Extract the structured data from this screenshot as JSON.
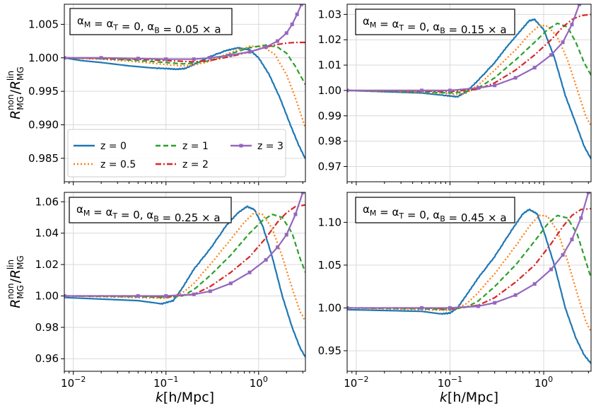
{
  "chart_data": [
    {
      "type": "line",
      "panel_label": "α_M = α_T = 0, α_B = 0.05 × a",
      "xlabel": "k[h/Mpc]",
      "ylabel": "R_MG^non / R_MG^lin",
      "xscale": "log",
      "xlim": [
        0.008,
        3.2
      ],
      "ylim": [
        0.9815,
        1.008
      ],
      "yticks": [
        0.985,
        0.99,
        0.995,
        1.0,
        1.005
      ],
      "ytick_labels": [
        "0.985",
        "0.990",
        "0.995",
        "1.000",
        "1.005"
      ],
      "grid": true,
      "legend": "lower-left",
      "series": [
        {
          "name": "z = 0",
          "color": "#1f77b4",
          "dash": "solid",
          "x": [
            0.008,
            0.012,
            0.02,
            0.04,
            0.07,
            0.1,
            0.13,
            0.16,
            0.2,
            0.3,
            0.45,
            0.6,
            0.8,
            1.0,
            1.3,
            1.7,
            2.2,
            2.7,
            3.2
          ],
          "y": [
            1.0,
            0.9996,
            0.9993,
            0.9988,
            0.9985,
            0.9984,
            0.9983,
            0.9984,
            0.999,
            1.0002,
            1.0011,
            1.0015,
            1.0012,
            1.0,
            0.9975,
            0.994,
            0.99,
            0.987,
            0.9849
          ]
        },
        {
          "name": "z = 0.5",
          "color": "#ff7f0e",
          "dash": "dotted",
          "x": [
            0.008,
            0.02,
            0.05,
            0.1,
            0.15,
            0.2,
            0.3,
            0.5,
            0.8,
            1.1,
            1.5,
            2.0,
            2.5,
            3.2
          ],
          "y": [
            1.0,
            0.9998,
            0.9994,
            0.999,
            0.9988,
            0.9989,
            0.9995,
            1.0008,
            1.0017,
            1.0017,
            1.0005,
            0.9975,
            0.994,
            0.9895
          ]
        },
        {
          "name": "z = 1",
          "color": "#2ca02c",
          "dash": "dashed",
          "x": [
            0.008,
            0.02,
            0.05,
            0.1,
            0.15,
            0.2,
            0.3,
            0.5,
            0.8,
            1.2,
            1.6,
            2.0,
            2.5,
            3.2
          ],
          "y": [
            1.0,
            0.9999,
            0.9996,
            0.9993,
            0.9991,
            0.9992,
            0.9996,
            1.0006,
            1.0015,
            1.0019,
            1.0016,
            1.0007,
            0.9987,
            0.996
          ]
        },
        {
          "name": "z = 2",
          "color": "#d62728",
          "dash": "dashdot",
          "x": [
            0.008,
            0.02,
            0.05,
            0.1,
            0.2,
            0.3,
            0.5,
            0.8,
            1.2,
            1.6,
            2.0,
            2.5,
            3.2
          ],
          "y": [
            1.0,
            0.9999,
            0.9998,
            0.9996,
            0.9994,
            0.9996,
            1.0002,
            1.0009,
            1.0016,
            1.002,
            1.0022,
            1.0023,
            1.0023
          ]
        },
        {
          "name": "z = 3",
          "color": "#9467bd",
          "dash": "solid-square-markers",
          "x": [
            0.008,
            0.02,
            0.05,
            0.1,
            0.2,
            0.3,
            0.5,
            0.8,
            1.2,
            1.6,
            2.0,
            2.3,
            2.6,
            2.9
          ],
          "y": [
            1.0,
            1.0,
            0.9999,
            0.9998,
            0.9998,
            1.0,
            1.0004,
            1.0009,
            1.0016,
            1.0025,
            1.0037,
            1.005,
            1.0065,
            1.008
          ]
        }
      ]
    },
    {
      "type": "line",
      "panel_label": "α_M = α_T = 0, α_B = 0.15 × a",
      "xlabel": "k[h/Mpc]",
      "ylabel": "",
      "xscale": "log",
      "xlim": [
        0.008,
        3.2
      ],
      "ylim": [
        0.964,
        1.034
      ],
      "yticks": [
        0.97,
        0.98,
        0.99,
        1.0,
        1.01,
        1.02,
        1.03
      ],
      "ytick_labels": [
        "0.97",
        "0.98",
        "0.99",
        "1.00",
        "1.01",
        "1.02",
        "1.03"
      ],
      "grid": true,
      "series": [
        {
          "name": "z = 0",
          "color": "#1f77b4",
          "dash": "solid",
          "x": [
            0.008,
            0.02,
            0.05,
            0.09,
            0.12,
            0.15,
            0.2,
            0.3,
            0.4,
            0.55,
            0.7,
            0.8,
            1.0,
            1.3,
            1.7,
            2.2,
            2.7,
            3.2
          ],
          "y": [
            1.0,
            0.9995,
            0.999,
            0.998,
            0.9975,
            0.9995,
            1.004,
            1.011,
            1.017,
            1.023,
            1.0275,
            1.028,
            1.024,
            1.013,
            0.998,
            0.987,
            0.978,
            0.973
          ]
        },
        {
          "name": "z = 0.5",
          "color": "#ff7f0e",
          "dash": "dotted",
          "x": [
            0.008,
            0.03,
            0.08,
            0.12,
            0.15,
            0.2,
            0.3,
            0.5,
            0.7,
            0.9,
            1.1,
            1.4,
            1.8,
            2.3,
            2.8,
            3.2
          ],
          "y": [
            1.0,
            0.9995,
            0.999,
            0.9985,
            0.999,
            1.002,
            1.008,
            1.016,
            1.022,
            1.0255,
            1.0255,
            1.021,
            1.012,
            1.0,
            0.99,
            0.986
          ]
        },
        {
          "name": "z = 1",
          "color": "#2ca02c",
          "dash": "dashed",
          "x": [
            0.008,
            0.05,
            0.1,
            0.15,
            0.2,
            0.3,
            0.5,
            0.8,
            1.1,
            1.4,
            1.8,
            2.2,
            2.7,
            3.2
          ],
          "y": [
            1.0,
            0.9995,
            0.999,
            0.9995,
            1.001,
            1.005,
            1.012,
            1.019,
            1.024,
            1.0265,
            1.025,
            1.019,
            1.011,
            1.006
          ]
        },
        {
          "name": "z = 2",
          "color": "#d62728",
          "dash": "dashdot",
          "x": [
            0.008,
            0.05,
            0.1,
            0.2,
            0.3,
            0.5,
            0.8,
            1.2,
            1.6,
            2.0,
            2.5,
            3.2
          ],
          "y": [
            1.0,
            0.9998,
            0.9996,
            1.0005,
            1.003,
            1.008,
            1.014,
            1.02,
            1.025,
            1.028,
            1.0295,
            1.03
          ]
        },
        {
          "name": "z = 3",
          "color": "#9467bd",
          "dash": "solid-square-markers",
          "x": [
            0.008,
            0.05,
            0.1,
            0.2,
            0.3,
            0.5,
            0.8,
            1.2,
            1.6,
            2.0,
            2.4
          ],
          "y": [
            1.0,
            1.0,
            1.0,
            1.001,
            1.002,
            1.005,
            1.009,
            1.014,
            1.019,
            1.026,
            1.034
          ]
        }
      ]
    },
    {
      "type": "line",
      "panel_label": "α_M = α_T = 0, α_B = 0.25 × a",
      "xlabel": "k[h/Mpc]",
      "ylabel": "R_MG^non / R_MG^lin",
      "xscale": "log",
      "xlim": [
        0.008,
        3.2
      ],
      "ylim": [
        0.952,
        1.066
      ],
      "yticks": [
        0.96,
        0.98,
        1.0,
        1.02,
        1.04,
        1.06
      ],
      "ytick_labels": [
        "0.96",
        "0.98",
        "1.00",
        "1.02",
        "1.04",
        "1.06"
      ],
      "grid": true,
      "series": [
        {
          "name": "z = 0",
          "color": "#1f77b4",
          "dash": "solid",
          "x": [
            0.008,
            0.02,
            0.05,
            0.09,
            0.12,
            0.15,
            0.2,
            0.3,
            0.45,
            0.6,
            0.75,
            0.9,
            1.1,
            1.4,
            1.8,
            2.3,
            2.8,
            3.2
          ],
          "y": [
            0.999,
            0.998,
            0.997,
            0.995,
            0.997,
            1.005,
            1.017,
            1.03,
            1.045,
            1.053,
            1.057,
            1.055,
            1.045,
            1.025,
            1.0,
            0.98,
            0.967,
            0.961
          ]
        },
        {
          "name": "z = 0.5",
          "color": "#ff7f0e",
          "dash": "dotted",
          "x": [
            0.008,
            0.05,
            0.1,
            0.15,
            0.2,
            0.3,
            0.5,
            0.7,
            0.9,
            1.1,
            1.4,
            1.8,
            2.3,
            2.8,
            3.2
          ],
          "y": [
            1.0,
            0.999,
            0.9985,
            1.002,
            1.008,
            1.02,
            1.036,
            1.047,
            1.053,
            1.052,
            1.043,
            1.025,
            1.005,
            0.99,
            0.984
          ]
        },
        {
          "name": "z = 1",
          "color": "#2ca02c",
          "dash": "dashed",
          "x": [
            0.008,
            0.05,
            0.1,
            0.15,
            0.2,
            0.3,
            0.5,
            0.8,
            1.1,
            1.4,
            1.8,
            2.3,
            2.8,
            3.2
          ],
          "y": [
            1.0,
            0.9995,
            0.999,
            1.0,
            1.004,
            1.013,
            1.026,
            1.04,
            1.048,
            1.052,
            1.05,
            1.04,
            1.024,
            1.015
          ]
        },
        {
          "name": "z = 2",
          "color": "#d62728",
          "dash": "dashdot",
          "x": [
            0.008,
            0.05,
            0.1,
            0.2,
            0.3,
            0.5,
            0.8,
            1.2,
            1.6,
            2.0,
            2.5,
            3.2
          ],
          "y": [
            1.0,
            1.0,
            0.9995,
            1.001,
            1.006,
            1.015,
            1.025,
            1.037,
            1.047,
            1.053,
            1.057,
            1.058
          ]
        },
        {
          "name": "z = 3",
          "color": "#9467bd",
          "dash": "solid-square-markers",
          "x": [
            0.008,
            0.05,
            0.1,
            0.2,
            0.3,
            0.5,
            0.8,
            1.2,
            1.6,
            2.0,
            2.5,
            3.0
          ],
          "y": [
            1.0,
            1.0,
            1.0,
            1.001,
            1.003,
            1.008,
            1.015,
            1.023,
            1.031,
            1.039,
            1.052,
            1.066
          ]
        }
      ]
    },
    {
      "type": "line",
      "panel_label": "α_M = α_T = 0, α_B = 0.45 × a",
      "xlabel": "k[h/Mpc]",
      "ylabel": "",
      "xscale": "log",
      "xlim": [
        0.008,
        3.2
      ],
      "ylim": [
        0.926,
        1.135
      ],
      "yticks": [
        0.95,
        1.0,
        1.05,
        1.1
      ],
      "ytick_labels": [
        "0.95",
        "1.00",
        "1.05",
        "1.10"
      ],
      "grid": true,
      "series": [
        {
          "name": "z = 0",
          "color": "#1f77b4",
          "dash": "solid",
          "x": [
            0.008,
            0.02,
            0.05,
            0.08,
            0.1,
            0.12,
            0.15,
            0.2,
            0.3,
            0.45,
            0.6,
            0.7,
            0.85,
            1.0,
            1.3,
            1.7,
            2.2,
            2.7,
            3.2
          ],
          "y": [
            0.998,
            0.997,
            0.996,
            0.993,
            0.994,
            1.0,
            1.015,
            1.035,
            1.06,
            1.09,
            1.11,
            1.115,
            1.11,
            1.09,
            1.05,
            1.0,
            0.965,
            0.945,
            0.935
          ]
        },
        {
          "name": "z = 0.5",
          "color": "#ff7f0e",
          "dash": "dotted",
          "x": [
            0.008,
            0.05,
            0.1,
            0.15,
            0.2,
            0.3,
            0.5,
            0.7,
            0.9,
            1.1,
            1.4,
            1.8,
            2.3,
            2.8,
            3.2
          ],
          "y": [
            1.0,
            0.998,
            0.997,
            1.005,
            1.018,
            1.04,
            1.072,
            1.095,
            1.108,
            1.107,
            1.09,
            1.055,
            1.015,
            0.985,
            0.972
          ]
        },
        {
          "name": "z = 1",
          "color": "#2ca02c",
          "dash": "dashed",
          "x": [
            0.008,
            0.05,
            0.1,
            0.15,
            0.2,
            0.3,
            0.5,
            0.8,
            1.1,
            1.4,
            1.8,
            2.3,
            2.8,
            3.2
          ],
          "y": [
            1.0,
            0.999,
            0.998,
            1.001,
            1.008,
            1.025,
            1.05,
            1.078,
            1.098,
            1.108,
            1.105,
            1.085,
            1.055,
            1.035
          ]
        },
        {
          "name": "z = 2",
          "color": "#d62728",
          "dash": "dashdot",
          "x": [
            0.008,
            0.05,
            0.1,
            0.2,
            0.3,
            0.5,
            0.8,
            1.2,
            1.6,
            2.0,
            2.5,
            3.2
          ],
          "y": [
            1.0,
            1.0,
            0.999,
            1.003,
            1.012,
            1.03,
            1.05,
            1.075,
            1.095,
            1.108,
            1.115,
            1.116
          ]
        },
        {
          "name": "z = 3",
          "color": "#9467bd",
          "dash": "solid-square-markers",
          "x": [
            0.008,
            0.05,
            0.1,
            0.2,
            0.3,
            0.5,
            0.8,
            1.2,
            1.6,
            2.0,
            2.5,
            3.0
          ],
          "y": [
            1.0,
            1.0,
            1.0,
            1.002,
            1.006,
            1.015,
            1.028,
            1.045,
            1.062,
            1.08,
            1.105,
            1.135
          ]
        }
      ]
    }
  ],
  "xticks": [
    0.01,
    0.1,
    1.0
  ],
  "xtick_labels": [
    {
      "base": "10",
      "exp": "−2"
    },
    {
      "base": "10",
      "exp": "−1"
    },
    {
      "base": "10",
      "exp": "0"
    }
  ],
  "legend_entries": [
    {
      "label": "z = 0",
      "color": "#1f77b4",
      "dash": "solid"
    },
    {
      "label": "z = 0.5",
      "color": "#ff7f0e",
      "dash": "dotted"
    },
    {
      "label": "z = 1",
      "color": "#2ca02c",
      "dash": "dashed"
    },
    {
      "label": "z = 2",
      "color": "#d62728",
      "dash": "dashdot"
    },
    {
      "label": "z = 3",
      "color": "#9467bd",
      "dash": "solid-square-markers"
    }
  ]
}
